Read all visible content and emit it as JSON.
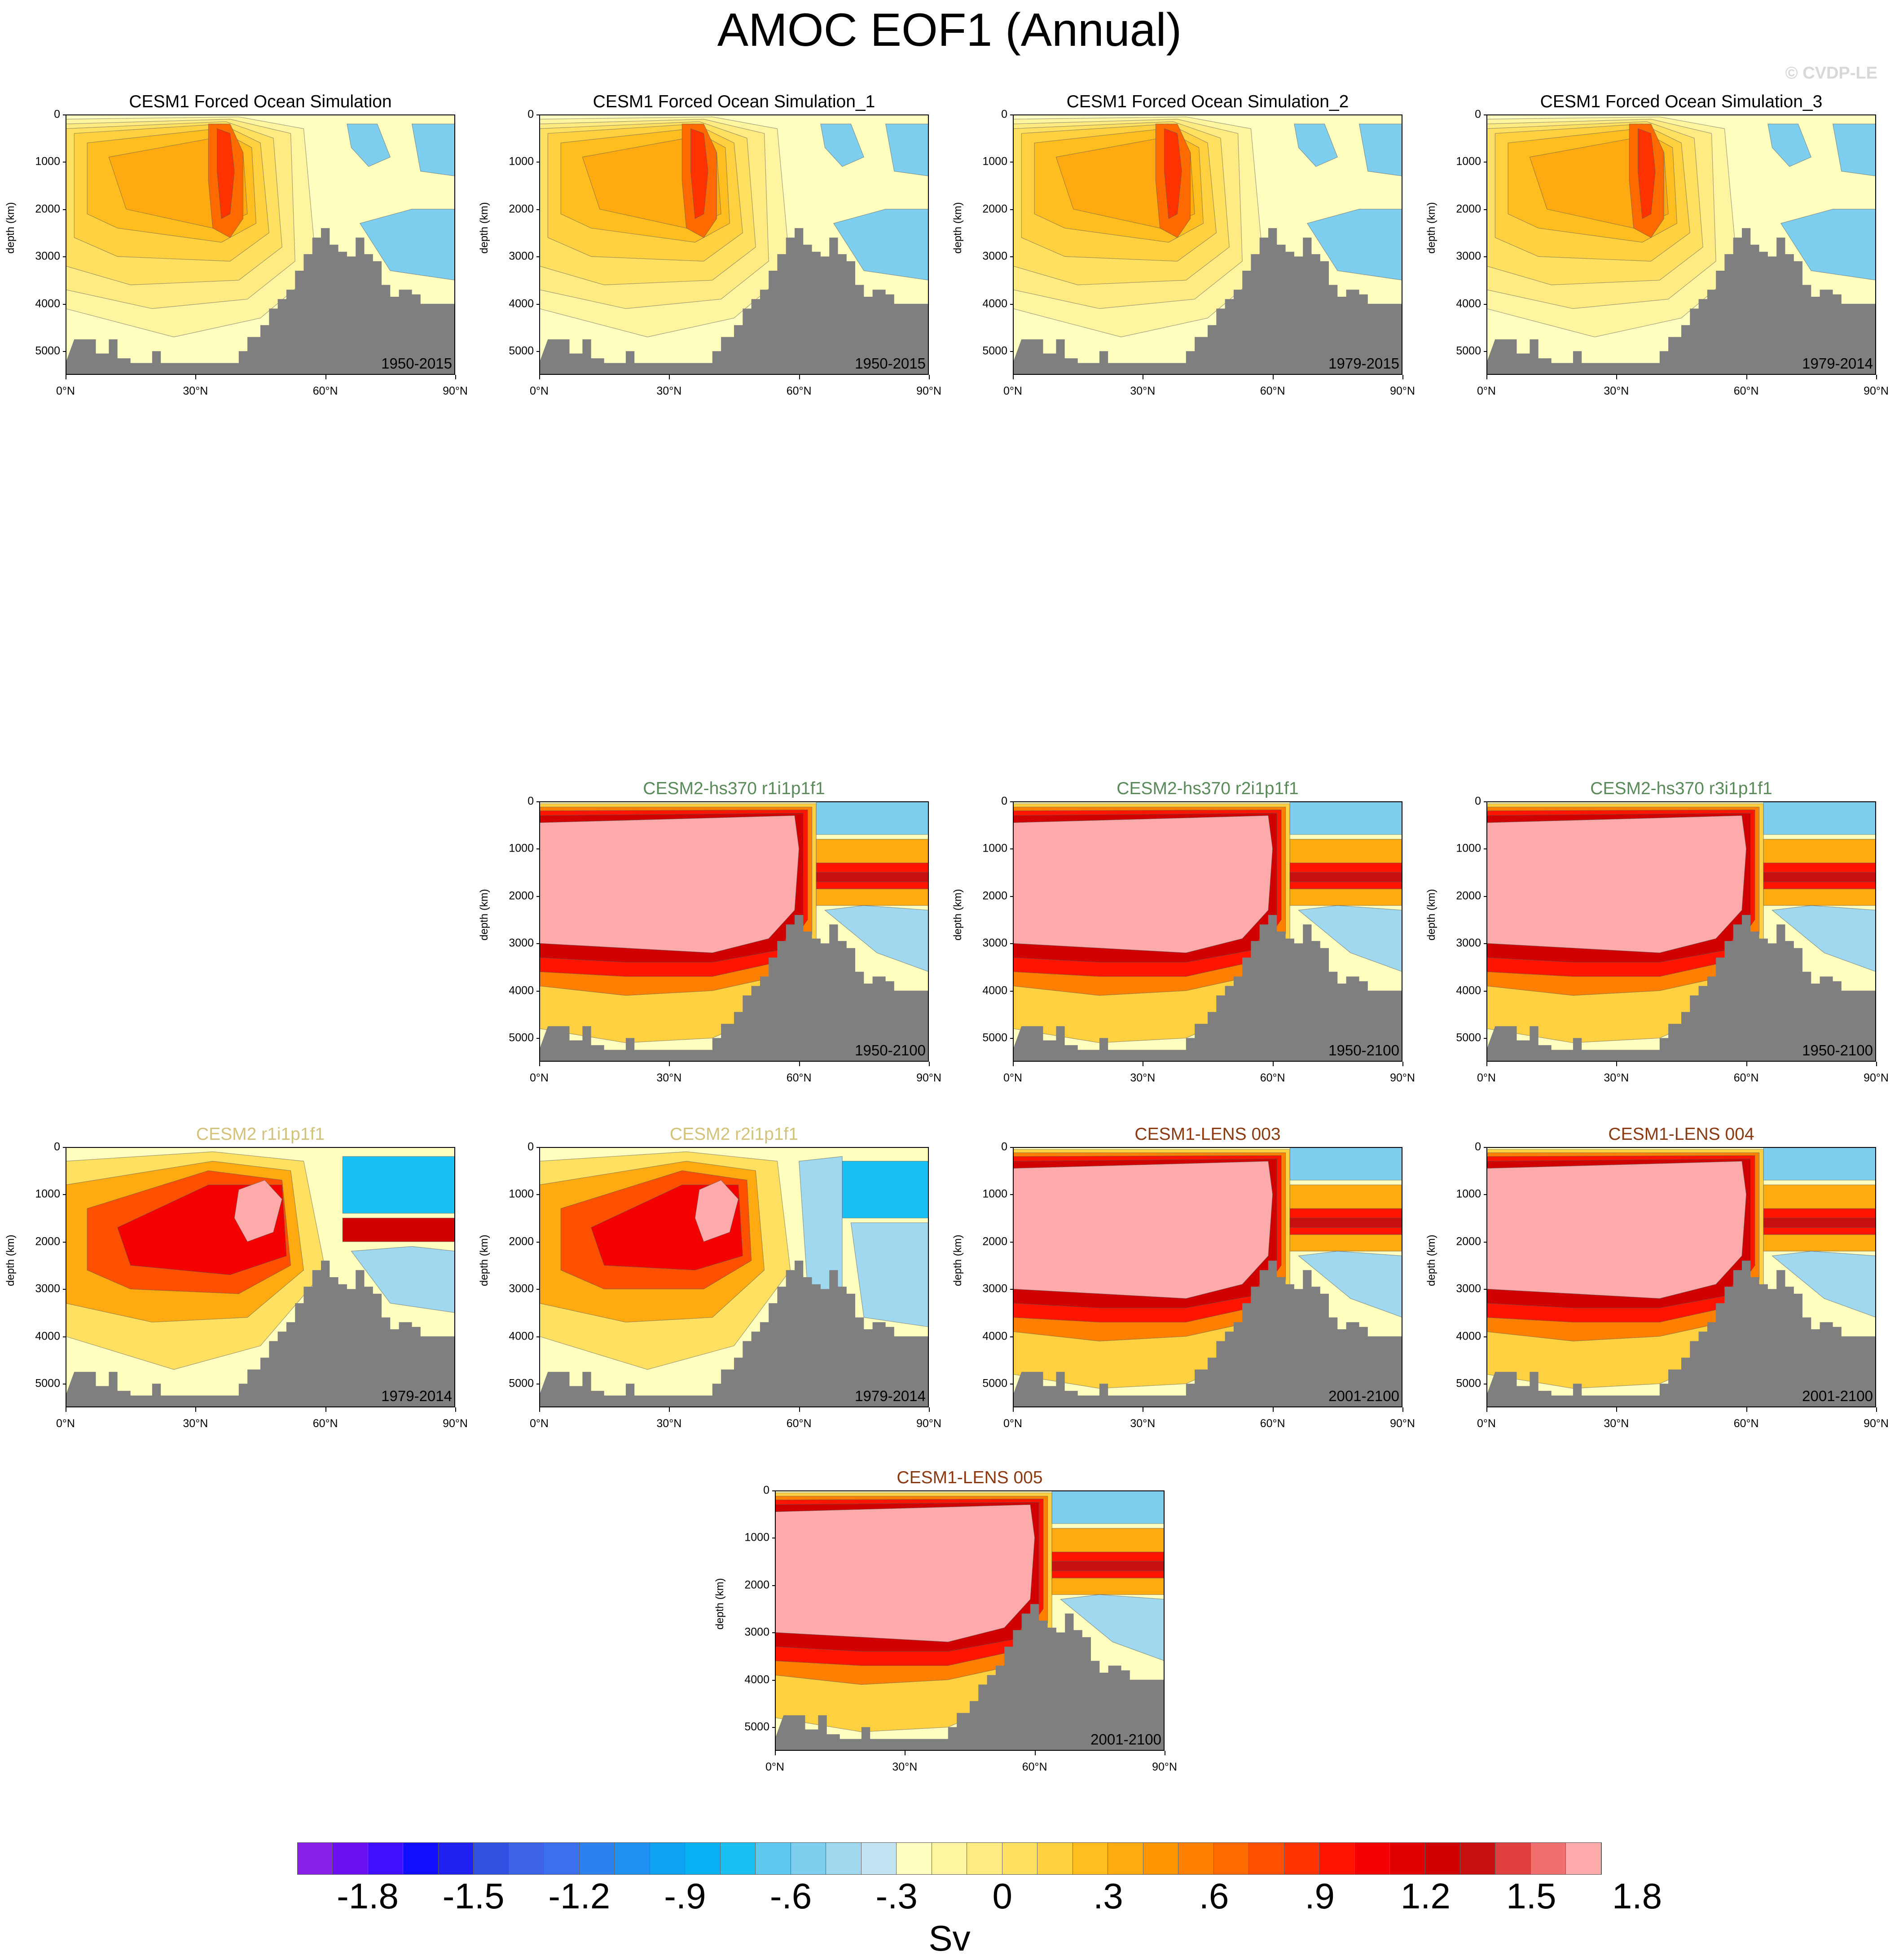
{
  "title": "AMOC EOF1 (Annual)",
  "watermark": "© CVDP-LE",
  "y_axis": {
    "label": "depth (km)",
    "ticks": [
      "0",
      "1000",
      "2000",
      "3000",
      "4000",
      "5000"
    ],
    "range": [
      0,
      5500
    ]
  },
  "x_axis": {
    "ticks": [
      "0°N",
      "30°N",
      "60°N",
      "90°N"
    ],
    "range": [
      0,
      90
    ]
  },
  "colors": {
    "land": "#7f7f7f",
    "title_cesm1_forced": "#000000",
    "title_cesm2_hs370": "#5a8a5a",
    "title_cesm2": "#d2c27a",
    "title_cesm1_lens": "#8b3a12"
  },
  "chart_data": {
    "type": "heatmap",
    "title": "AMOC EOF1 (Annual)",
    "ylabel": "depth (km)",
    "xlabel": "",
    "units": "Sv",
    "colorbar": {
      "labels": [
        "-1.8",
        "-1.5",
        "-1.2",
        "-.9",
        "-.6",
        "-.3",
        "0",
        ".3",
        ".6",
        ".9",
        "1.2",
        "1.5",
        "1.8"
      ],
      "colors": [
        "#8a20e8",
        "#6a10f0",
        "#3e10ff",
        "#1010ff",
        "#2020f0",
        "#3050e0",
        "#3c62e6",
        "#3a70ee",
        "#2c80f0",
        "#2090f0",
        "#10a2f2",
        "#08b2f4",
        "#18c0f4",
        "#5cc8f0",
        "#7ecef0",
        "#a0d8f0",
        "#c2e4f2",
        "#ffffc0",
        "#fff5a0",
        "#ffeb82",
        "#ffe060",
        "#ffd040",
        "#ffbe20",
        "#ffaa10",
        "#ff9600",
        "#ff8000",
        "#ff6a00",
        "#ff5000",
        "#ff3200",
        "#ff1400",
        "#f40000",
        "#e00000",
        "#d00000",
        "#c81010",
        "#e04040",
        "#f07070",
        "#ffaaaa"
      ]
    },
    "panels": [
      {
        "title": "CESM1 Forced Ocean Simulation",
        "period": "1950-2015",
        "group": "cesm1_forced",
        "pattern": "forced"
      },
      {
        "title": "CESM1 Forced Ocean Simulation_1",
        "period": "1950-2015",
        "group": "cesm1_forced",
        "pattern": "forced"
      },
      {
        "title": "CESM1 Forced Ocean Simulation_2",
        "period": "1979-2015",
        "group": "cesm1_forced",
        "pattern": "forced"
      },
      {
        "title": "CESM1 Forced Ocean Simulation_3",
        "period": "1979-2014",
        "group": "cesm1_forced",
        "pattern": "forced"
      },
      {
        "title": "CESM2-hs370 r1i1p1f1",
        "period": "1950-2100",
        "group": "cesm2_hs370",
        "pattern": "strong"
      },
      {
        "title": "CESM2-hs370 r2i1p1f1",
        "period": "1950-2100",
        "group": "cesm2_hs370",
        "pattern": "strong"
      },
      {
        "title": "CESM2-hs370 r3i1p1f1",
        "period": "1950-2100",
        "group": "cesm2_hs370",
        "pattern": "strong"
      },
      {
        "title": "CESM2 r1i1p1f1",
        "period": "1979-2014",
        "group": "cesm2",
        "pattern": "cesm2"
      },
      {
        "title": "CESM2 r2i1p1f1",
        "period": "1979-2014",
        "group": "cesm2",
        "pattern": "cesm2b"
      },
      {
        "title": "CESM1-LENS 003",
        "period": "2001-2100",
        "group": "cesm1_lens",
        "pattern": "strong"
      },
      {
        "title": "CESM1-LENS 004",
        "period": "2001-2100",
        "group": "cesm1_lens",
        "pattern": "strong"
      },
      {
        "title": "CESM1-LENS 005",
        "period": "2001-2100",
        "group": "cesm1_lens",
        "pattern": "strong"
      }
    ]
  }
}
